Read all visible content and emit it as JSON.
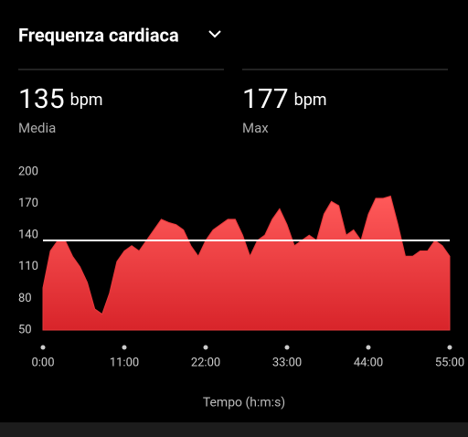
{
  "header": {
    "title": "Frequenza cardiaca"
  },
  "stats": [
    {
      "value": 135,
      "unit": "bpm",
      "label": "Media"
    },
    {
      "value": 177,
      "unit": "bpm",
      "label": "Max"
    }
  ],
  "chart_data": {
    "type": "area",
    "x_label": "Tempo (h:m:s)",
    "x": [
      0,
      1,
      2,
      3,
      4,
      5,
      6,
      7,
      8,
      9,
      10,
      11,
      12,
      13,
      14,
      15,
      16,
      17,
      18,
      19,
      20,
      21,
      22,
      23,
      24,
      25,
      26,
      27,
      28,
      29,
      30,
      31,
      32,
      33,
      34,
      35,
      36,
      37,
      38,
      39,
      40,
      41,
      42,
      43,
      44,
      45,
      46,
      47,
      48,
      49,
      50,
      51,
      52,
      53,
      54,
      55
    ],
    "series": [
      {
        "name": "Frequenza cardiaca",
        "color": "#e8393c",
        "values": [
          90,
          125,
          135,
          135,
          120,
          110,
          95,
          70,
          65,
          85,
          115,
          125,
          130,
          125,
          135,
          145,
          155,
          152,
          150,
          145,
          130,
          120,
          135,
          145,
          150,
          155,
          155,
          140,
          120,
          135,
          140,
          155,
          165,
          150,
          130,
          135,
          140,
          135,
          160,
          172,
          168,
          140,
          145,
          135,
          160,
          175,
          175,
          177,
          150,
          120,
          120,
          125,
          125,
          135,
          130,
          120
        ]
      }
    ],
    "xlim": [
      0,
      55
    ],
    "xticks": [
      {
        "value": 0,
        "label": "0:00"
      },
      {
        "value": 11,
        "label": "11:00"
      },
      {
        "value": 22,
        "label": "22:00"
      },
      {
        "value": 33,
        "label": "33:00"
      },
      {
        "value": 44,
        "label": "44:00"
      },
      {
        "value": 55,
        "label": "55:00"
      }
    ],
    "ylim": [
      50,
      200
    ],
    "yticks": [
      50,
      80,
      110,
      140,
      170,
      200
    ]
  }
}
